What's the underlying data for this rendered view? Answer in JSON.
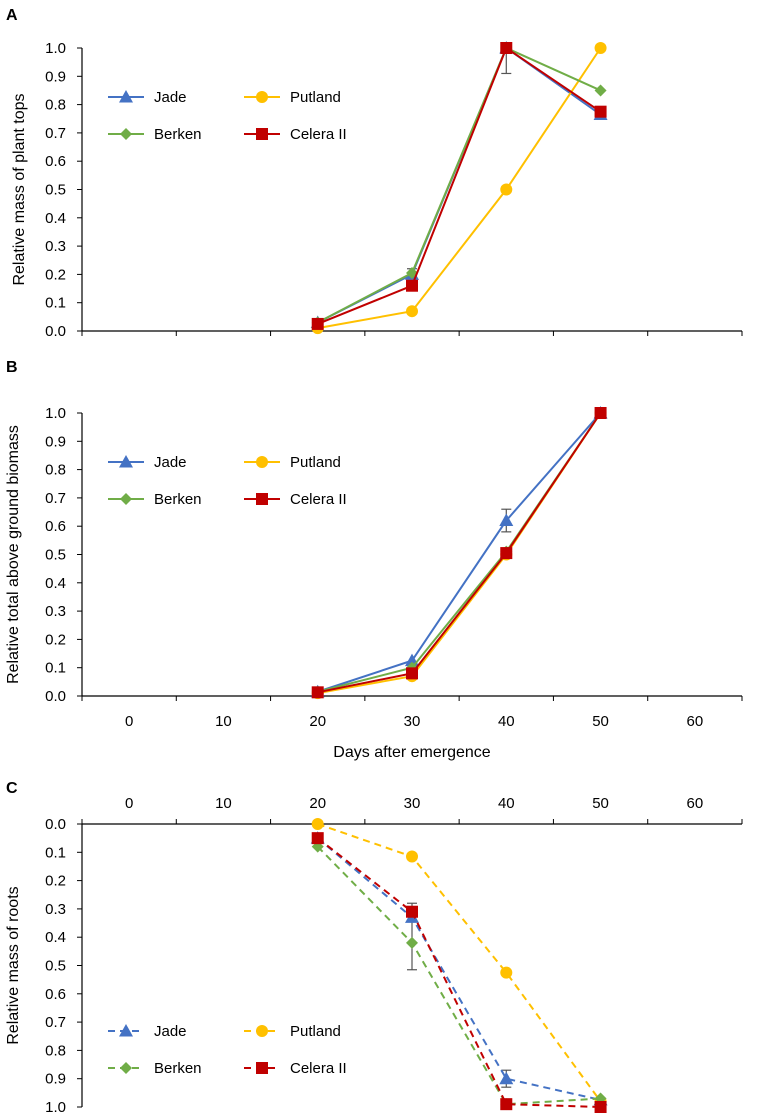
{
  "colors": {
    "Jade": "#4472C4",
    "Putland": "#FFC000",
    "Berken": "#70AD47",
    "Celera II": "#C00000"
  },
  "chart_data": [
    {
      "panel": "A",
      "type": "line",
      "xlabel": "",
      "ylabel": "Relative mass of plant tops",
      "xlim": [
        -5,
        65
      ],
      "ylim": [
        0,
        1.0
      ],
      "x_ticks_shown": false,
      "y_ticks": [
        "0.0",
        "0.1",
        "0.2",
        "0.3",
        "0.4",
        "0.5",
        "0.6",
        "0.7",
        "0.8",
        "0.9",
        "1.0"
      ],
      "dashed": false,
      "legend_position": "upper-left",
      "series": [
        {
          "name": "Jade",
          "marker": "triangle",
          "x": [
            20,
            30,
            40,
            50
          ],
          "y": [
            0.03,
            0.2,
            1.0,
            0.765
          ]
        },
        {
          "name": "Putland",
          "marker": "circle",
          "x": [
            20,
            30,
            40,
            50
          ],
          "y": [
            0.01,
            0.07,
            0.5,
            1.0
          ]
        },
        {
          "name": "Berken",
          "marker": "diamond",
          "x": [
            20,
            30,
            40,
            50
          ],
          "y": [
            0.03,
            0.205,
            1.0,
            0.85
          ]
        },
        {
          "name": "Celera II",
          "marker": "square",
          "x": [
            20,
            30,
            40,
            50
          ],
          "y": [
            0.025,
            0.16,
            1.0,
            0.775
          ]
        }
      ],
      "error_bars": [
        {
          "x": 30,
          "y": 0.205,
          "err": 0.015
        },
        {
          "x": 40,
          "y": 0.955,
          "err": 0.045
        }
      ]
    },
    {
      "panel": "B",
      "type": "line",
      "xlabel": "Days after emergence",
      "ylabel": "Relative total above ground biomass",
      "xlim": [
        -5,
        65
      ],
      "ylim": [
        0,
        1.0
      ],
      "x_ticks": [
        "0",
        "10",
        "20",
        "30",
        "40",
        "50",
        "60"
      ],
      "y_ticks": [
        "0.0",
        "0.1",
        "0.2",
        "0.3",
        "0.4",
        "0.5",
        "0.6",
        "0.7",
        "0.8",
        "0.9",
        "1.0"
      ],
      "dashed": false,
      "legend_position": "upper-left",
      "series": [
        {
          "name": "Jade",
          "marker": "triangle",
          "x": [
            20,
            30,
            40,
            50
          ],
          "y": [
            0.015,
            0.125,
            0.62,
            1.0
          ]
        },
        {
          "name": "Putland",
          "marker": "circle",
          "x": [
            20,
            30,
            40,
            50
          ],
          "y": [
            0.01,
            0.07,
            0.5,
            1.0
          ]
        },
        {
          "name": "Berken",
          "marker": "diamond",
          "x": [
            20,
            30,
            40,
            50
          ],
          "y": [
            0.015,
            0.1,
            0.51,
            1.0
          ]
        },
        {
          "name": "Celera II",
          "marker": "square",
          "x": [
            20,
            30,
            40,
            50
          ],
          "y": [
            0.013,
            0.08,
            0.505,
            1.0
          ]
        }
      ],
      "error_bars": [
        {
          "x": 40,
          "y": 0.62,
          "err": 0.04
        }
      ]
    },
    {
      "panel": "C",
      "type": "line",
      "xlabel": "",
      "ylabel": "Relative mass of roots",
      "xlim": [
        -5,
        65
      ],
      "ylim": [
        0,
        1.0
      ],
      "y_inverted": true,
      "x_axis_position": "top",
      "x_ticks": [
        "0",
        "10",
        "20",
        "30",
        "40",
        "50",
        "60"
      ],
      "y_ticks": [
        "0.0",
        "0.1",
        "0.2",
        "0.3",
        "0.4",
        "0.5",
        "0.6",
        "0.7",
        "0.8",
        "0.9",
        "1.0"
      ],
      "dashed": true,
      "legend_position": "lower-left",
      "series": [
        {
          "name": "Jade",
          "marker": "triangle",
          "x": [
            20,
            30,
            40,
            50
          ],
          "y": [
            0.05,
            0.33,
            0.9,
            0.975
          ]
        },
        {
          "name": "Putland",
          "marker": "circle",
          "x": [
            20,
            30,
            40,
            50
          ],
          "y": [
            0.0,
            0.115,
            0.525,
            0.98
          ]
        },
        {
          "name": "Berken",
          "marker": "diamond",
          "x": [
            20,
            30,
            40,
            50
          ],
          "y": [
            0.08,
            0.42,
            0.99,
            0.97
          ]
        },
        {
          "name": "Celera II",
          "marker": "square",
          "x": [
            20,
            30,
            40,
            50
          ],
          "y": [
            0.05,
            0.31,
            0.99,
            1.0
          ]
        }
      ],
      "error_bars": [
        {
          "x": 30,
          "y": 0.42,
          "err": 0.095
        },
        {
          "x": 30,
          "y": 0.31,
          "err": 0.03
        },
        {
          "x": 40,
          "y": 0.9,
          "err": 0.03
        }
      ]
    }
  ]
}
